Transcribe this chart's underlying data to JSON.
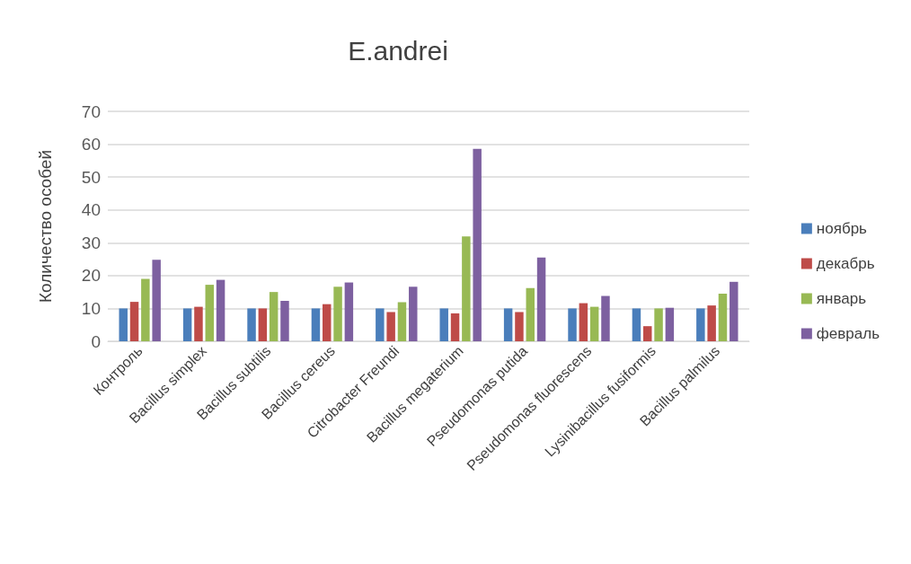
{
  "chart_data": {
    "type": "bar",
    "title": "E.andrei",
    "ylabel": "Количество особей",
    "categories": [
      "Контроль",
      "Bacillus simplex",
      "Bacillus subtilis",
      "Bacillus cereus",
      "Citrobacter Freundi",
      "Bacillus megaterium",
      "Pseudomonas putida",
      "Pseudomonas fluorescens",
      "Lysinibacillus fusiformis",
      "Bacillus palmilus"
    ],
    "series": [
      {
        "name": "ноябрь",
        "color": "#4a7ebb",
        "values": [
          10,
          10,
          10,
          10,
          10,
          10,
          10,
          10,
          10,
          10
        ]
      },
      {
        "name": "декабрь",
        "color": "#be4b48",
        "values": [
          12,
          10.5,
          10,
          11.3,
          8.9,
          8.5,
          8.9,
          11.6,
          4.6,
          10.9
        ]
      },
      {
        "name": "январь",
        "color": "#98b954",
        "values": [
          19,
          17.2,
          15,
          16.6,
          11.9,
          31.9,
          16.2,
          10.5,
          10,
          14.5
        ]
      },
      {
        "name": "февраль",
        "color": "#7d60a0",
        "values": [
          24.8,
          18.7,
          12.3,
          17.9,
          16.6,
          58.6,
          25.5,
          13.8,
          10.2,
          18.1
        ]
      }
    ],
    "ylim": [
      0,
      70
    ],
    "yticks": [
      0,
      10,
      20,
      30,
      40,
      50,
      60,
      70
    ],
    "grid": "y",
    "legend": "right"
  }
}
